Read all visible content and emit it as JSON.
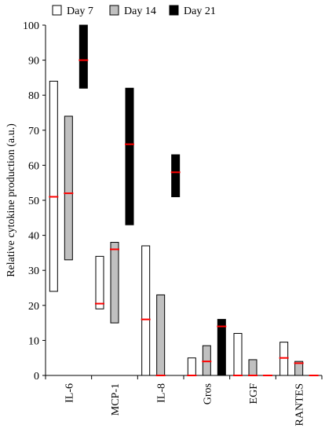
{
  "chart_data": {
    "type": "floating-bar",
    "title": "",
    "ylabel": "Relative cytokine production (a.u.)",
    "xlabel": "",
    "ylim": [
      0,
      100
    ],
    "yticks": [
      "0",
      "10",
      "20",
      "30",
      "40",
      "50",
      "60",
      "70",
      "80",
      "90",
      "100"
    ],
    "categories": [
      "IL-6",
      "MCP-1",
      "IL-8",
      "Gros",
      "EGF",
      "RANTES"
    ],
    "legend": {
      "position": "top",
      "entries": [
        "Day 7",
        "Day 14",
        "Day 21"
      ]
    },
    "colors": {
      "Day 7": "#ffffff",
      "Day 14": "#c0c0c0",
      "Day 21": "#000000",
      "median": "#ff0000",
      "outline": "#000000"
    },
    "series": [
      {
        "name": "Day 7",
        "ranges": [
          {
            "low": 24,
            "high": 84,
            "median": 51
          },
          {
            "low": 19,
            "high": 34,
            "median": 20.5
          },
          {
            "low": 0,
            "high": 37,
            "median": 16
          },
          {
            "low": 0,
            "high": 5,
            "median": 0
          },
          {
            "low": 0,
            "high": 12,
            "median": 0
          },
          {
            "low": 0,
            "high": 9.5,
            "median": 5
          }
        ]
      },
      {
        "name": "Day 14",
        "ranges": [
          {
            "low": 33,
            "high": 74,
            "median": 52
          },
          {
            "low": 15,
            "high": 38,
            "median": 36
          },
          {
            "low": 0,
            "high": 23,
            "median": 0
          },
          {
            "low": 0,
            "high": 8.5,
            "median": 4
          },
          {
            "low": 0,
            "high": 4.5,
            "median": 0
          },
          {
            "low": 0,
            "high": 4,
            "median": 3.5
          }
        ]
      },
      {
        "name": "Day 21",
        "ranges": [
          {
            "low": 82,
            "high": 100,
            "median": 90
          },
          {
            "low": 43,
            "high": 82,
            "median": 66
          },
          {
            "low": 51,
            "high": 63,
            "median": 58
          },
          {
            "low": 0,
            "high": 16,
            "median": 14
          },
          {
            "low": 0,
            "high": 0,
            "median": 0
          },
          {
            "low": 0,
            "high": 0,
            "median": 0
          }
        ]
      }
    ]
  }
}
